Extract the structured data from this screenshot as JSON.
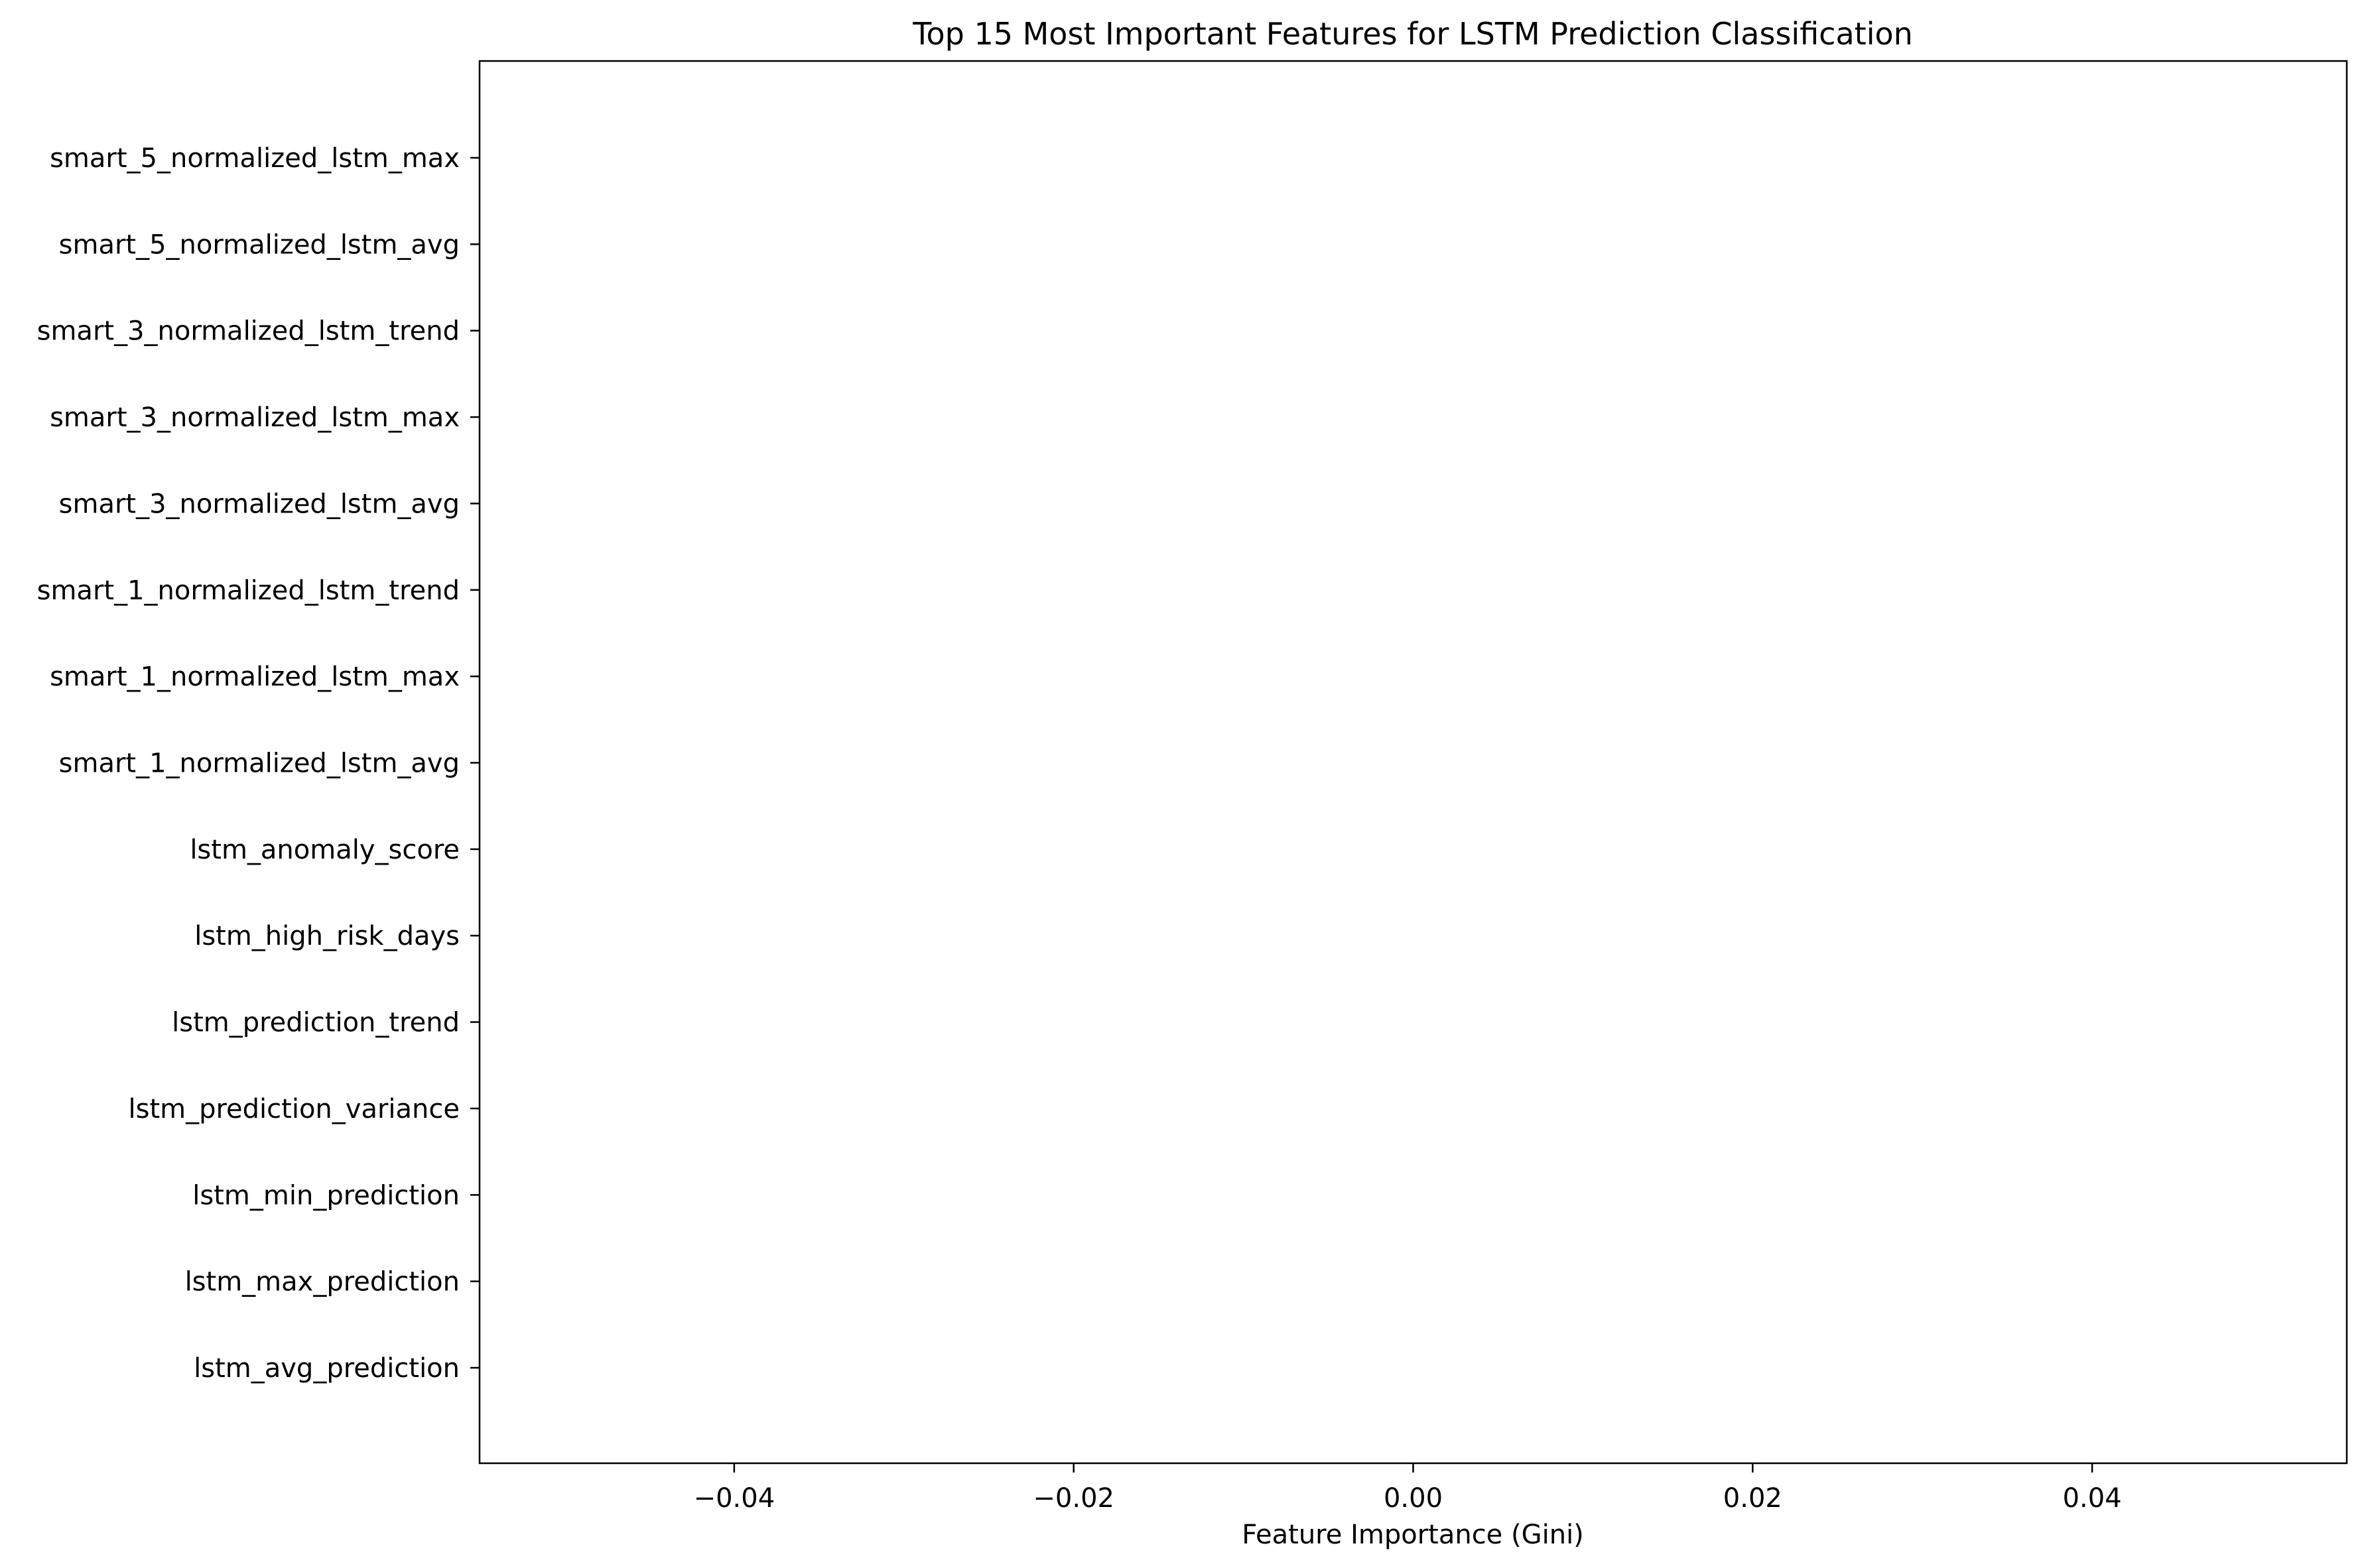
{
  "chart_data": {
    "type": "bar",
    "orientation": "horizontal",
    "title": "Top 15 Most Important Features for LSTM Prediction Classification",
    "xlabel": "Feature Importance (Gini)",
    "ylabel": "",
    "xlim": [
      -0.055,
      0.055
    ],
    "xticks": [
      -0.04,
      -0.02,
      0.0,
      0.02,
      0.04
    ],
    "xtick_labels": [
      "−0.04",
      "−0.02",
      "0.00",
      "0.02",
      "0.04"
    ],
    "categories": [
      "lstm_avg_prediction",
      "lstm_max_prediction",
      "lstm_min_prediction",
      "lstm_prediction_variance",
      "lstm_prediction_trend",
      "lstm_high_risk_days",
      "lstm_anomaly_score",
      "smart_1_normalized_lstm_avg",
      "smart_1_normalized_lstm_max",
      "smart_1_normalized_lstm_trend",
      "smart_3_normalized_lstm_avg",
      "smart_3_normalized_lstm_max",
      "smart_3_normalized_lstm_trend",
      "smart_5_normalized_lstm_avg",
      "smart_5_normalized_lstm_max"
    ],
    "values": [
      0,
      0,
      0,
      0,
      0,
      0,
      0,
      0,
      0,
      0,
      0,
      0,
      0,
      0,
      0
    ],
    "grid": false,
    "legend": "none",
    "colors": {
      "axis": "#000000",
      "background": "#ffffff"
    }
  }
}
